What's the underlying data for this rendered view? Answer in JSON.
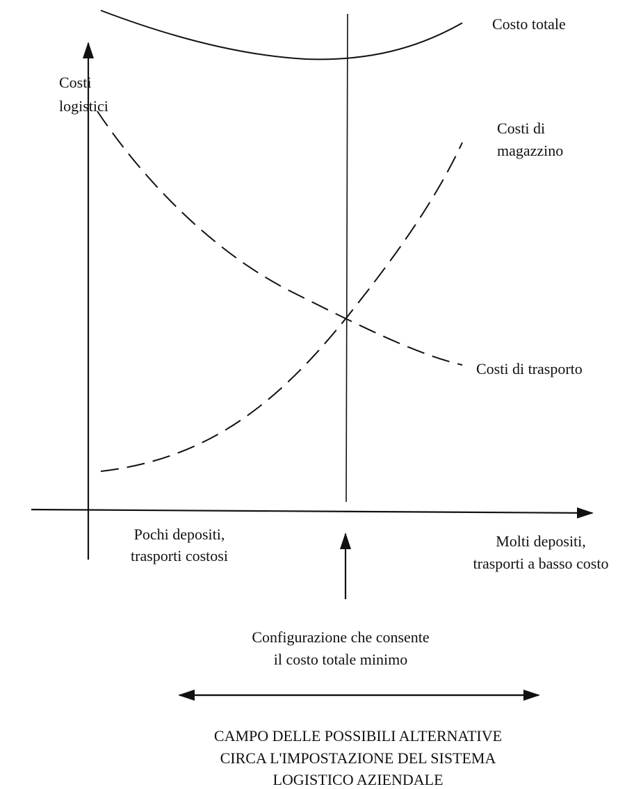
{
  "labels": {
    "total_cost": "Costo totale",
    "y_axis": [
      "Costi",
      "logistici"
    ],
    "warehouse_cost": [
      "Costi di",
      "magazzino"
    ],
    "transport_cost": "Costi di trasporto",
    "left_end": [
      "Pochi depositi,",
      "trasporti costosi"
    ],
    "right_end": [
      "Molti depositi,",
      "trasporti a basso costo"
    ],
    "optimum": [
      "Configurazione che consente",
      "il costo totale minimo"
    ],
    "range": [
      "CAMPO DELLE POSSIBILI ALTERNATIVE",
      "CIRCA L'IMPOSTAZIONE DEL SISTEMA",
      "LOGISTICO AZIENDALE"
    ]
  }
}
